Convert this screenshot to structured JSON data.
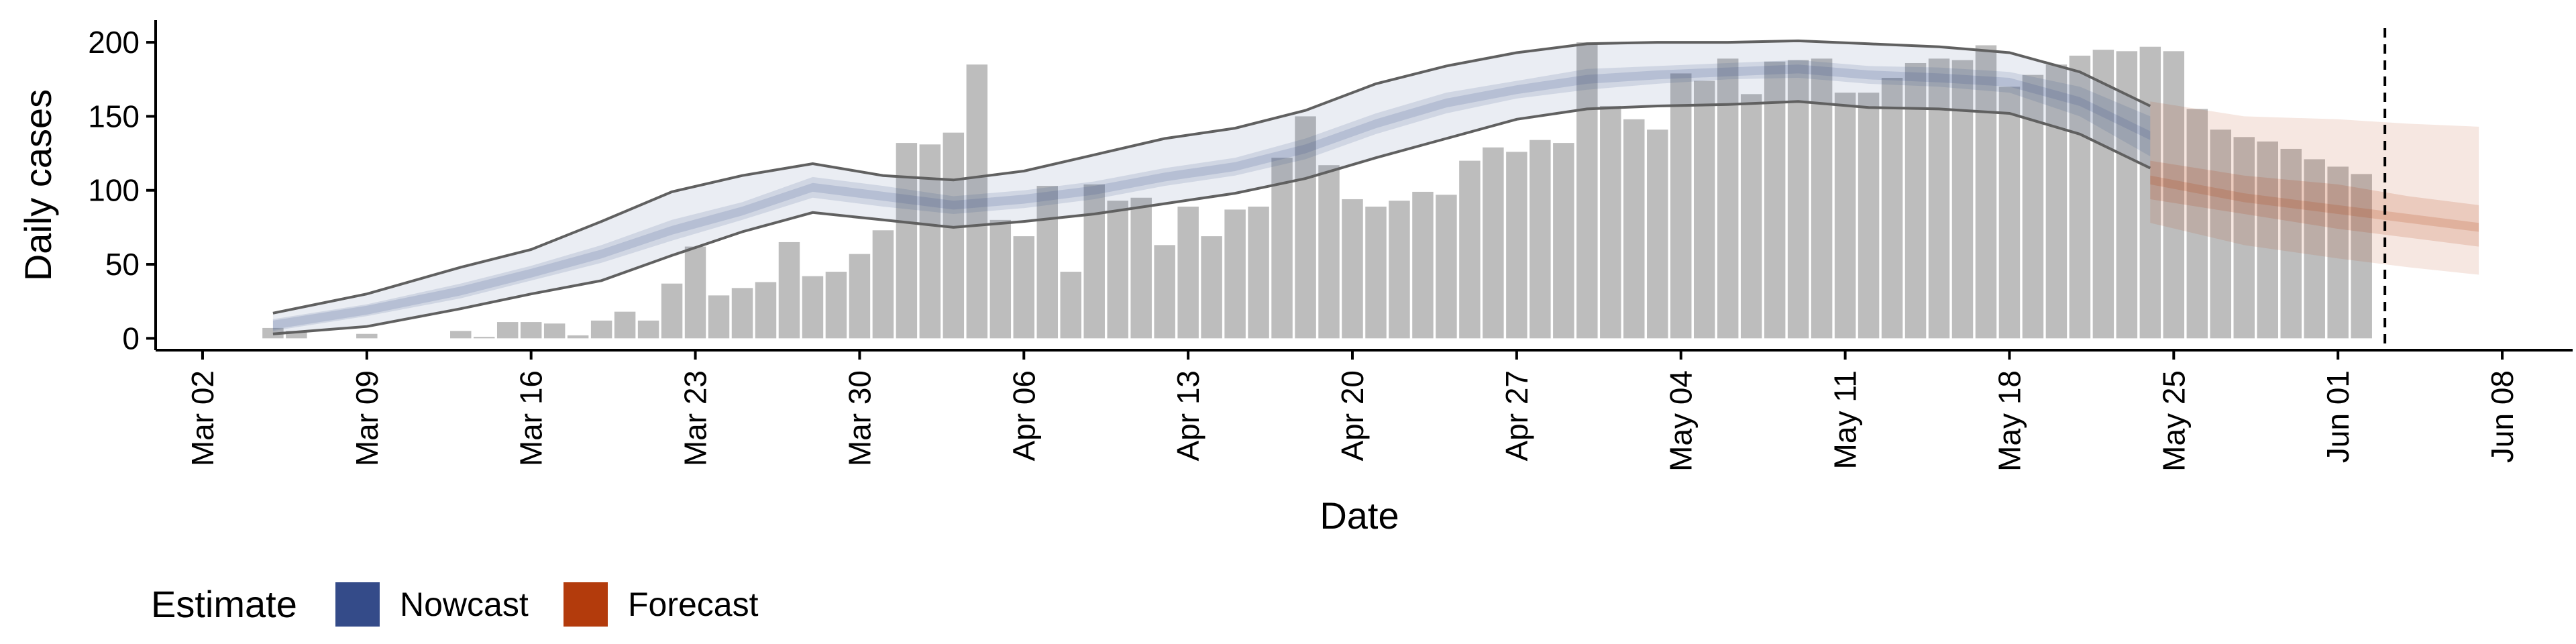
{
  "chart_data": {
    "type": "bar",
    "xlabel": "Date",
    "ylabel": "Daily cases",
    "x_domain": [
      "2020-02-29",
      "2020-06-11"
    ],
    "ylim": [
      -8,
      215
    ],
    "y_ticks": [
      0,
      50,
      100,
      150,
      200
    ],
    "x_ticks": [
      {
        "date": "2020-03-02",
        "label": "Mar 02"
      },
      {
        "date": "2020-03-09",
        "label": "Mar 09"
      },
      {
        "date": "2020-03-16",
        "label": "Mar 16"
      },
      {
        "date": "2020-03-23",
        "label": "Mar 23"
      },
      {
        "date": "2020-03-30",
        "label": "Mar 30"
      },
      {
        "date": "2020-04-06",
        "label": "Apr 06"
      },
      {
        "date": "2020-04-13",
        "label": "Apr 13"
      },
      {
        "date": "2020-04-20",
        "label": "Apr 20"
      },
      {
        "date": "2020-04-27",
        "label": "Apr 27"
      },
      {
        "date": "2020-05-04",
        "label": "May 04"
      },
      {
        "date": "2020-05-11",
        "label": "May 11"
      },
      {
        "date": "2020-05-18",
        "label": "May 18"
      },
      {
        "date": "2020-05-25",
        "label": "May 25"
      },
      {
        "date": "2020-06-01",
        "label": "Jun 01"
      },
      {
        "date": "2020-06-08",
        "label": "Jun 08"
      }
    ],
    "bar_color": "#bdbdbd",
    "bars": {
      "start_date": "2020-03-05",
      "values": [
        7,
        5,
        0,
        0,
        3,
        0,
        0,
        0,
        5,
        1,
        11,
        11,
        10,
        2,
        12,
        18,
        12,
        37,
        62,
        29,
        34,
        38,
        65,
        42,
        45,
        57,
        73,
        132,
        131,
        139,
        185,
        80,
        69,
        103,
        45,
        104,
        93,
        95,
        63,
        89,
        69,
        87,
        89,
        122,
        150,
        117,
        94,
        89,
        93,
        99,
        97,
        120,
        129,
        126,
        134,
        132,
        200,
        157,
        148,
        141,
        179,
        174,
        189,
        165,
        187,
        188,
        189,
        166,
        166,
        176,
        186,
        189,
        188,
        198,
        170,
        178,
        185,
        191,
        195,
        194,
        197,
        194,
        155,
        141,
        136,
        133,
        128,
        121,
        116,
        111
      ]
    },
    "cutoff_date": "2020-06-03",
    "legend": {
      "title": "Estimate",
      "position": "bottom-left",
      "items": [
        {
          "label": "Nowcast",
          "color": "#344b89"
        },
        {
          "label": "Forecast",
          "color": "#b33b0c"
        }
      ]
    },
    "nowcast": {
      "color": "#344b89",
      "dates": [
        "2020-03-05",
        "2020-03-09",
        "2020-03-13",
        "2020-03-16",
        "2020-03-19",
        "2020-03-22",
        "2020-03-25",
        "2020-03-28",
        "2020-03-31",
        "2020-04-03",
        "2020-04-06",
        "2020-04-09",
        "2020-04-12",
        "2020-04-15",
        "2020-04-18",
        "2020-04-21",
        "2020-04-24",
        "2020-04-27",
        "2020-04-30",
        "2020-05-03",
        "2020-05-06",
        "2020-05-09",
        "2020-05-12",
        "2020-05-15",
        "2020-05-18",
        "2020-05-21",
        "2020-05-24"
      ],
      "median": [
        9,
        19,
        32,
        44,
        57,
        73,
        86,
        102,
        96,
        90,
        94,
        100,
        109,
        116,
        128,
        145,
        159,
        168,
        175,
        178,
        180,
        182,
        178,
        176,
        173,
        160,
        137
      ],
      "inner_lo": [
        5,
        15,
        27,
        39,
        51,
        66,
        80,
        95,
        89,
        84,
        88,
        94,
        103,
        110,
        121,
        138,
        152,
        162,
        168,
        172,
        175,
        176,
        172,
        170,
        166,
        150,
        123
      ],
      "inner_hi": [
        13,
        23,
        37,
        49,
        63,
        80,
        92,
        109,
        103,
        96,
        100,
        106,
        115,
        122,
        135,
        152,
        166,
        174,
        182,
        184,
        186,
        188,
        184,
        183,
        180,
        170,
        150
      ],
      "outer_lo": [
        3,
        8,
        20,
        30,
        39,
        56,
        72,
        85,
        80,
        75,
        79,
        84,
        91,
        98,
        108,
        122,
        135,
        148,
        155,
        157,
        158,
        160,
        156,
        155,
        152,
        138,
        115
      ],
      "outer_hi": [
        17,
        30,
        48,
        60,
        79,
        99,
        110,
        118,
        110,
        107,
        113,
        124,
        135,
        142,
        154,
        172,
        184,
        193,
        199,
        200,
        200,
        201,
        199,
        197,
        193,
        180,
        157
      ]
    },
    "forecast": {
      "color": "#b33b0c",
      "dates": [
        "2020-05-24",
        "2020-05-28",
        "2020-06-01",
        "2020-06-04",
        "2020-06-07"
      ],
      "median": [
        107,
        95,
        87,
        81,
        75
      ],
      "inner_lo": [
        94,
        84,
        74,
        68,
        62
      ],
      "inner_hi": [
        120,
        110,
        104,
        96,
        90
      ],
      "outer_lo": [
        78,
        63,
        54,
        48,
        43
      ],
      "outer_hi": [
        160,
        150,
        148,
        145,
        143
      ]
    }
  }
}
